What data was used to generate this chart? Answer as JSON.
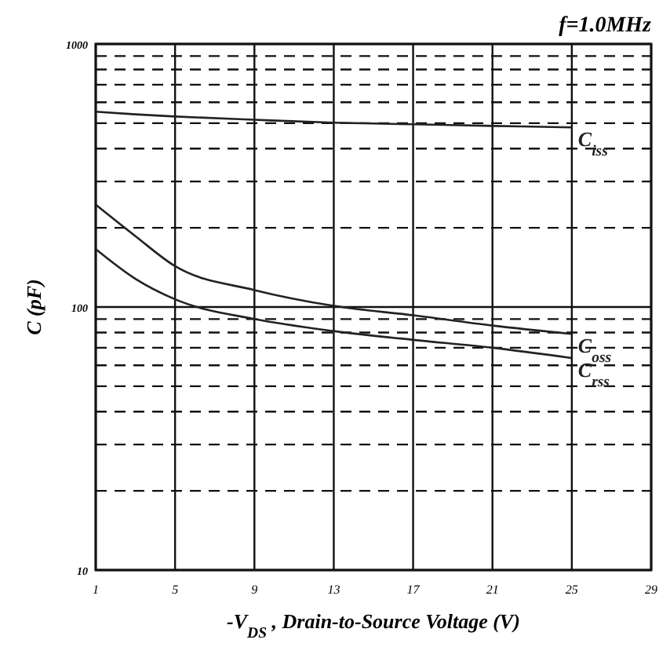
{
  "chart_data": {
    "type": "line",
    "annotations": [
      "f=1.0MHz"
    ],
    "xlabel": "-V$_{DS}$ , Drain-to-Source Voltage (V)",
    "ylabel": "C (pF)",
    "log": "y",
    "grid": true,
    "line_style": "solid",
    "marker": "none",
    "xlim": [
      1,
      29
    ],
    "xticks": [
      1,
      5,
      9,
      13,
      17,
      21,
      25,
      29
    ],
    "ylim": [
      10,
      1000
    ],
    "yticks": [
      10,
      {
        "value": 20,
        "label": null
      },
      {
        "value": 30,
        "label": null
      },
      {
        "value": 40,
        "label": null
      },
      {
        "value": 50,
        "label": null
      },
      {
        "value": 60,
        "label": null
      },
      {
        "value": 70,
        "label": null
      },
      {
        "value": 80,
        "label": null
      },
      {
        "value": 90,
        "label": null
      },
      100,
      {
        "value": 200,
        "label": null
      },
      {
        "value": 300,
        "label": null
      },
      {
        "value": 400,
        "label": null
      },
      {
        "value": 500,
        "label": null
      },
      {
        "value": 600,
        "label": null
      },
      {
        "value": 700,
        "label": null
      },
      {
        "value": 800,
        "label": null
      },
      {
        "value": 900,
        "label": null
      },
      1000
    ],
    "x": [
      1,
      3,
      5,
      9,
      13,
      17,
      21,
      25
    ],
    "series": [
      {
        "name": "C$_{iss}$",
        "color": "#222222",
        "values": [
          553,
          540,
          530,
          515,
          502,
          495,
          488,
          482
        ]
      },
      {
        "name": "C$_{oss}$",
        "color": "#222222",
        "values": [
          245,
          186,
          143,
          116,
          101,
          93,
          85,
          79
        ]
      },
      {
        "name": "C$_{rss}$",
        "color": "#222222",
        "values": [
          166,
          128,
          107,
          90,
          81,
          75,
          70,
          64
        ]
      }
    ]
  }
}
